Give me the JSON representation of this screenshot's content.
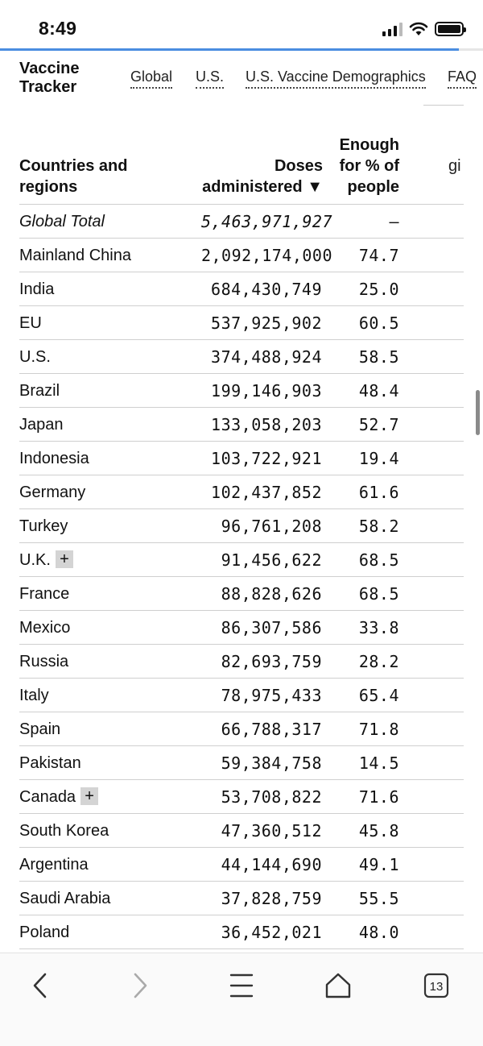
{
  "status": {
    "time": "8:49"
  },
  "header": {
    "title": "Vaccine Tracker",
    "nav": [
      "Global",
      "U.S.",
      "U.S. Vaccine Demographics",
      "FAQ"
    ]
  },
  "table": {
    "headers": {
      "country": "Countries and regions",
      "doses": "Doses administered ▼",
      "enough": "Enough for % of people",
      "given": "gi"
    },
    "rows": [
      {
        "name": "Global Total",
        "doses": "5,463,971,927",
        "pct": "–"
      },
      {
        "name": "Mainland China",
        "doses": "2,092,174,000",
        "pct": "74.7"
      },
      {
        "name": "India",
        "doses": "684,430,749",
        "pct": "25.0"
      },
      {
        "name": "EU",
        "doses": "537,925,902",
        "pct": "60.5"
      },
      {
        "name": "U.S.",
        "doses": "374,488,924",
        "pct": "58.5"
      },
      {
        "name": "Brazil",
        "doses": "199,146,903",
        "pct": "48.4"
      },
      {
        "name": "Japan",
        "doses": "133,058,203",
        "pct": "52.7"
      },
      {
        "name": "Indonesia",
        "doses": "103,722,921",
        "pct": "19.4"
      },
      {
        "name": "Germany",
        "doses": "102,437,852",
        "pct": "61.6"
      },
      {
        "name": "Turkey",
        "doses": "96,761,208",
        "pct": "58.2"
      },
      {
        "name": "U.K.",
        "doses": "91,456,622",
        "pct": "68.5",
        "expand": "+"
      },
      {
        "name": "France",
        "doses": "88,828,626",
        "pct": "68.5"
      },
      {
        "name": "Mexico",
        "doses": "86,307,586",
        "pct": "33.8"
      },
      {
        "name": "Russia",
        "doses": "82,693,759",
        "pct": "28.2"
      },
      {
        "name": "Italy",
        "doses": "78,975,433",
        "pct": "65.4"
      },
      {
        "name": "Spain",
        "doses": "66,788,317",
        "pct": "71.8"
      },
      {
        "name": "Pakistan",
        "doses": "59,384,758",
        "pct": "14.5"
      },
      {
        "name": "Canada",
        "doses": "53,708,822",
        "pct": "71.6",
        "expand": "+"
      },
      {
        "name": "South Korea",
        "doses": "47,360,512",
        "pct": "45.8"
      },
      {
        "name": "Argentina",
        "doses": "44,144,690",
        "pct": "49.1"
      },
      {
        "name": "Saudi Arabia",
        "doses": "37,828,759",
        "pct": "55.5"
      },
      {
        "name": "Poland",
        "doses": "36,452,021",
        "pct": "48.0"
      }
    ]
  },
  "toolbar": {
    "tabs_count": "13",
    "icons": [
      "back-icon",
      "forward-icon",
      "menu-icon",
      "home-icon",
      "tabs-icon"
    ]
  },
  "colors": {
    "accent": "#4a8de0",
    "expand_bg": "#d4d4d4"
  }
}
